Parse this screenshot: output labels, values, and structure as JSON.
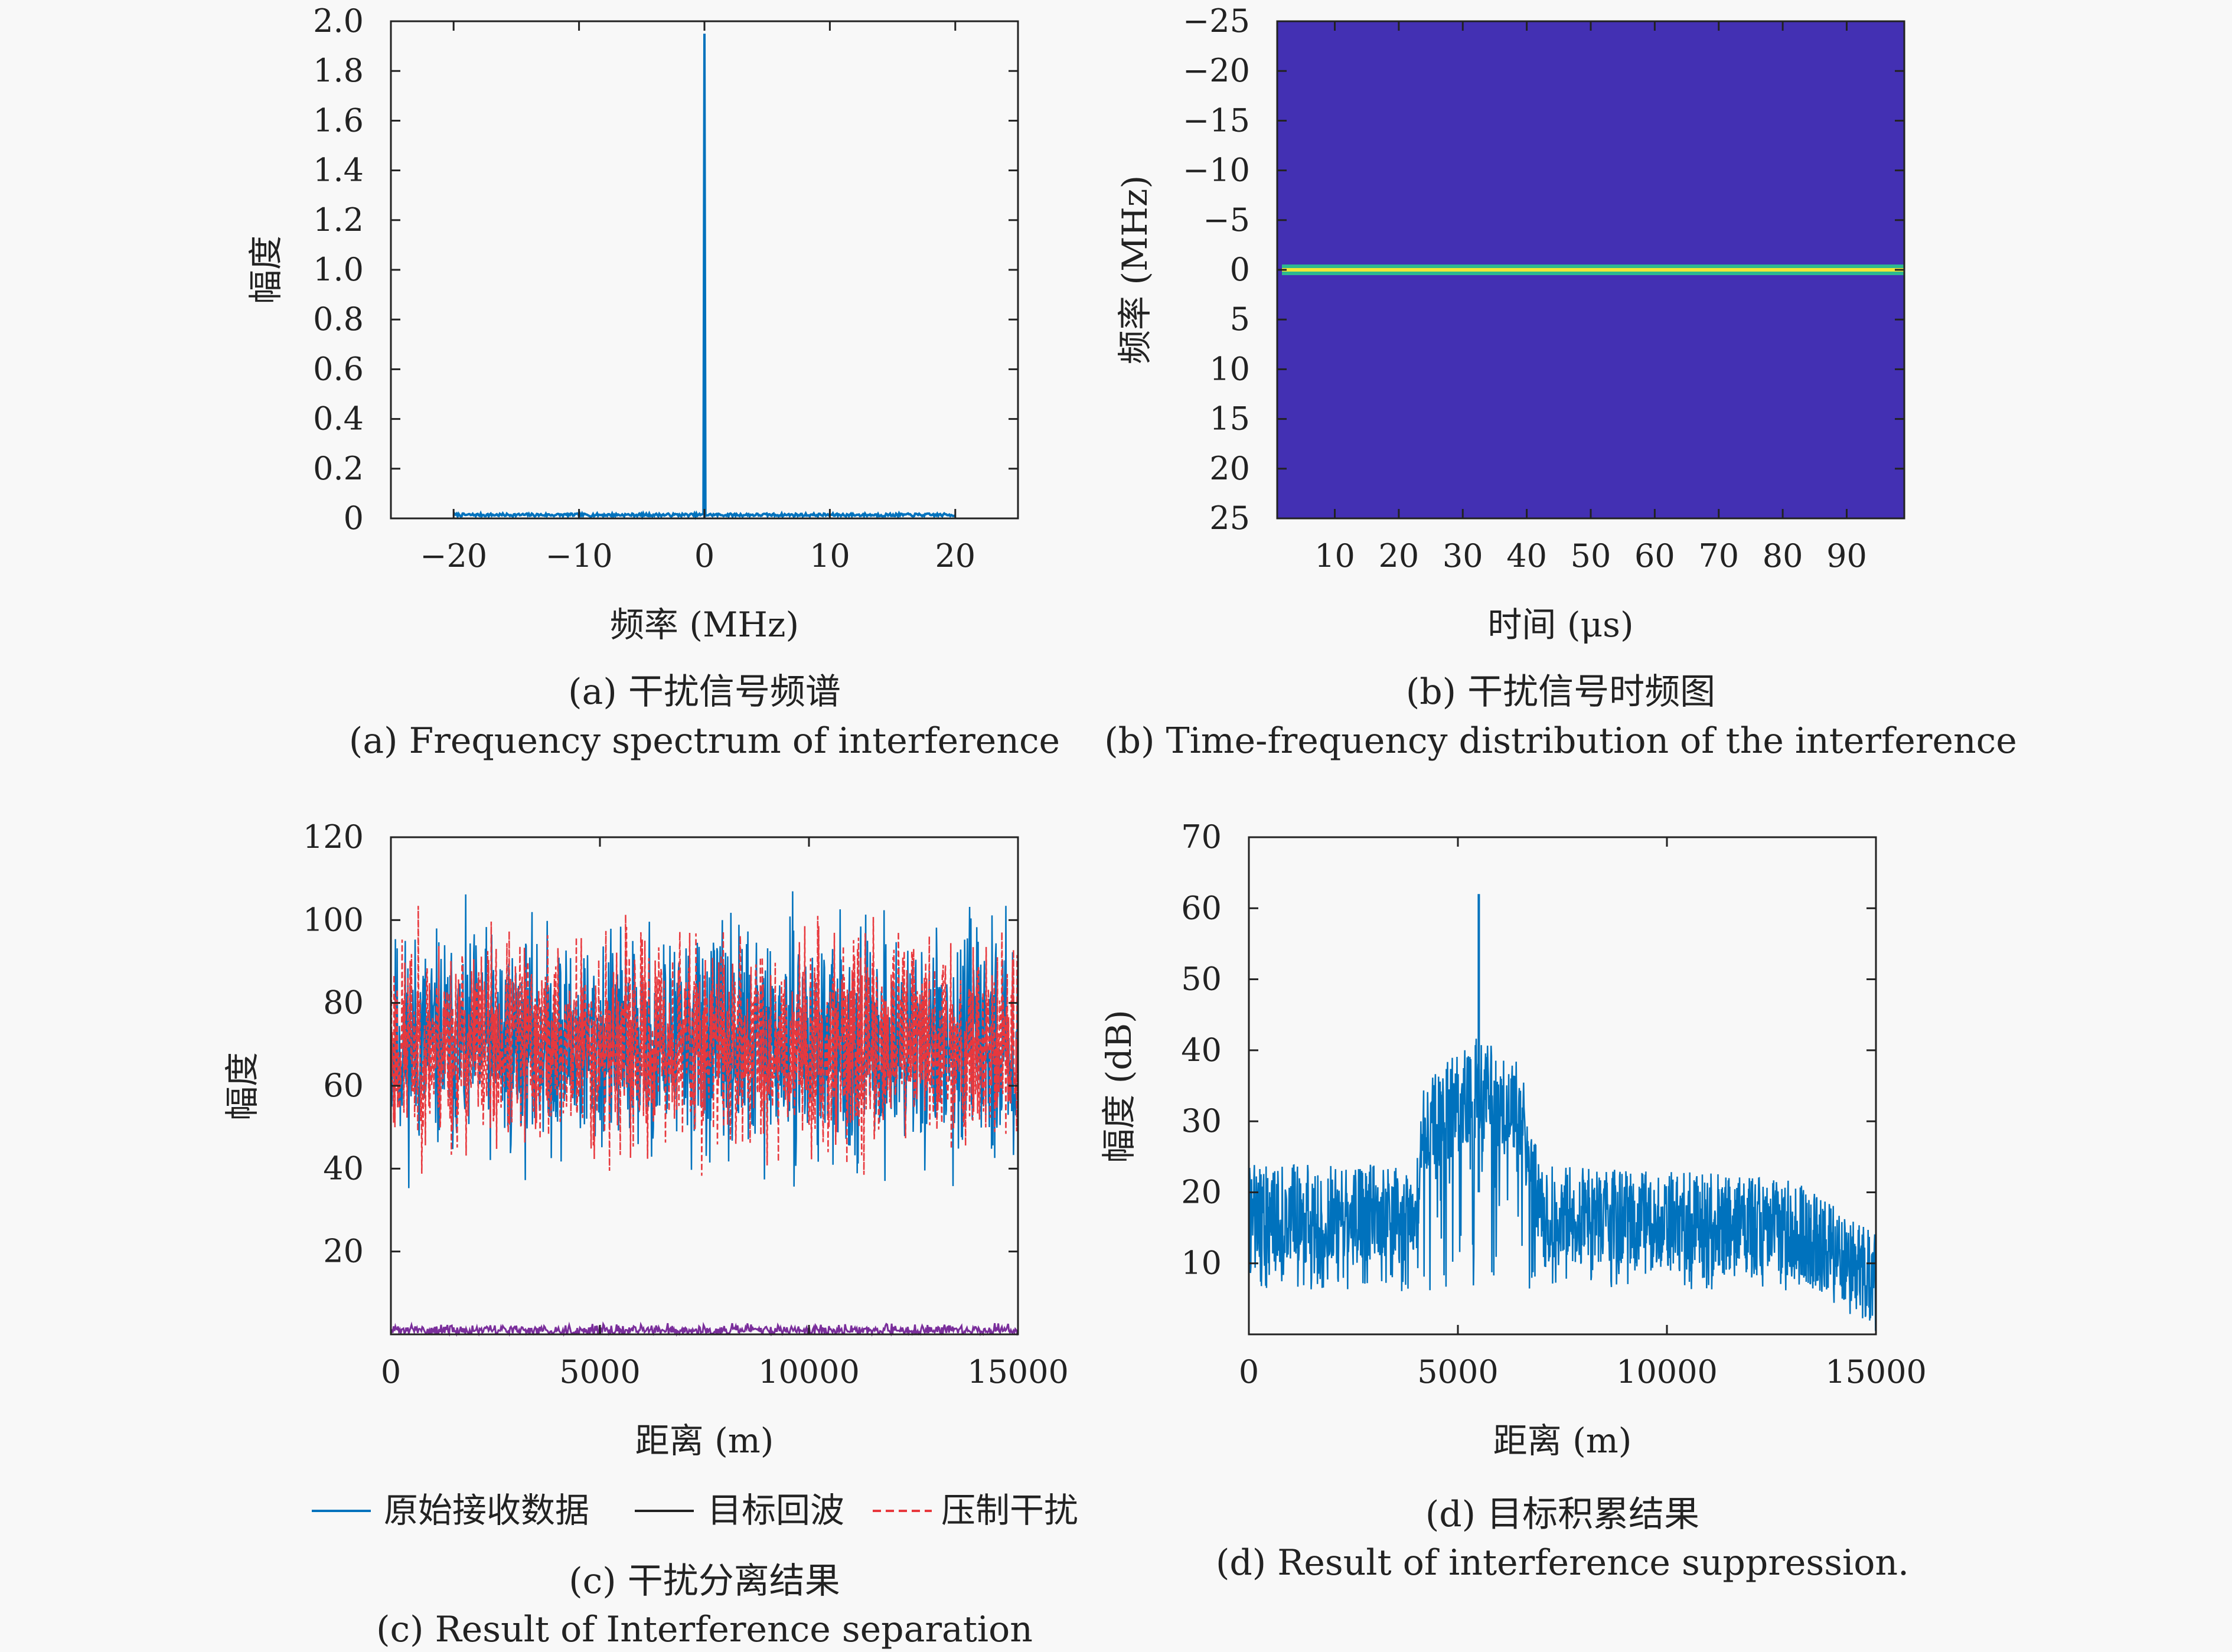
{
  "chart_data": [
    {
      "id": "a",
      "type": "line",
      "xlabel": "频率 (MHz)",
      "ylabel": "幅度",
      "xlim": [
        -25,
        25
      ],
      "ylim": [
        0,
        2.0
      ],
      "xticks": [
        -20,
        -10,
        0,
        10,
        20
      ],
      "yticks": [
        0,
        0.2,
        0.4,
        0.6,
        0.8,
        1.0,
        1.2,
        1.4,
        1.6,
        1.8,
        2.0
      ],
      "ytick_labels": [
        "0",
        "0.2",
        "0.4",
        "0.6",
        "0.8",
        "1.0",
        "1.2",
        "1.4",
        "1.6",
        "1.8",
        "2.0"
      ],
      "series": [
        {
          "color": "#0072BD",
          "x": [
            -20,
            -10,
            -0.1,
            0,
            0.1,
            10,
            20
          ],
          "y": [
            0.01,
            0.01,
            0.01,
            1.95,
            0.01,
            0.01,
            0.01
          ]
        }
      ],
      "caption_cn": "(a) 干扰信号频谱",
      "caption_en": "(a) Frequency spectrum of interference"
    },
    {
      "id": "b",
      "type": "heatmap",
      "xlabel": "时间 (μs)",
      "ylabel": "频率 (MHz)",
      "xlim": [
        1,
        99
      ],
      "ylim": [
        -25,
        25
      ],
      "xticks": [
        10,
        20,
        30,
        40,
        50,
        60,
        70,
        80,
        90
      ],
      "yticks": [
        -25,
        -20,
        -15,
        -10,
        -5,
        0,
        5,
        10,
        15,
        20,
        25
      ],
      "ytick_labels": [
        "−25",
        "−20",
        "−15",
        "−10",
        "−5",
        "0",
        "5",
        "10",
        "15",
        "20",
        "25"
      ],
      "background_color": "#4330B3",
      "band": {
        "frequency": 0,
        "color": "#2DB88F",
        "core_color": "#F2E636"
      },
      "caption_cn": "(b) 干扰信号时频图",
      "caption_en": "(b) Time-frequency distribution of the interference"
    },
    {
      "id": "c",
      "type": "line",
      "xlabel": "距离 (m)",
      "ylabel": "幅度",
      "xlim": [
        0,
        15000
      ],
      "ylim": [
        0,
        120
      ],
      "xticks": [
        0,
        5000,
        10000,
        15000
      ],
      "yticks": [
        20,
        40,
        60,
        80,
        100,
        120
      ],
      "ytick_labels": [
        "20",
        "40",
        "60",
        "80",
        "100",
        "120"
      ],
      "series": [
        {
          "name": "原始接收数据",
          "color": "#0072BD",
          "style": "solid",
          "mean": 70,
          "spread": 38
        },
        {
          "name": "目标回波",
          "color": "#222222",
          "style": "solid",
          "mean": 1,
          "spread": 2
        },
        {
          "name": "压制干扰",
          "color": "#E8383D",
          "style": "dashed",
          "mean": 70,
          "spread": 36
        }
      ],
      "caption_cn": "(c) 干扰分离结果",
      "caption_en": "(c) Result of Interference separation"
    },
    {
      "id": "d",
      "type": "line",
      "xlabel": "距离 (m)",
      "ylabel": "幅度 (dB)",
      "xlim": [
        0,
        15000
      ],
      "ylim": [
        0,
        70
      ],
      "xticks": [
        0,
        5000,
        10000,
        15000
      ],
      "yticks": [
        10,
        20,
        30,
        40,
        50,
        60,
        70
      ],
      "ytick_labels": [
        "10",
        "20",
        "30",
        "40",
        "50",
        "60",
        "70"
      ],
      "series": [
        {
          "color": "#0072BD",
          "envelope": [
            [
              0,
              18
            ],
            [
              4000,
              18
            ],
            [
              4200,
              30
            ],
            [
              5500,
              36
            ],
            [
              6500,
              32
            ],
            [
              7000,
              18
            ],
            [
              13000,
              16
            ],
            [
              15000,
              8
            ]
          ],
          "peak": {
            "x": 5500,
            "y": 62
          }
        }
      ],
      "caption_cn": "(d) 目标积累结果",
      "caption_en": "(d) Result of interference suppression."
    }
  ]
}
